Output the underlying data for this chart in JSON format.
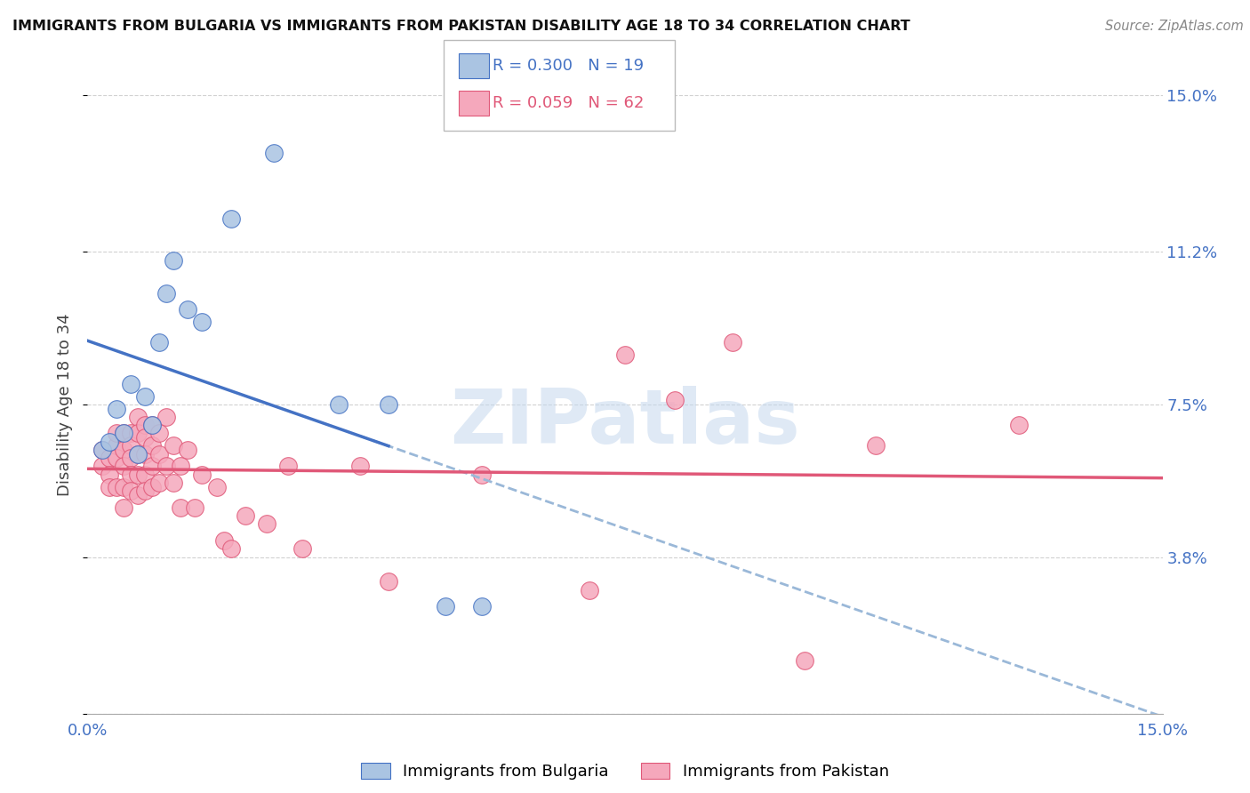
{
  "title": "IMMIGRANTS FROM BULGARIA VS IMMIGRANTS FROM PAKISTAN DISABILITY AGE 18 TO 34 CORRELATION CHART",
  "source": "Source: ZipAtlas.com",
  "ylabel": "Disability Age 18 to 34",
  "xmin": 0.0,
  "xmax": 0.15,
  "ymin": 0.0,
  "ymax": 0.15,
  "yticks": [
    0.0,
    0.038,
    0.075,
    0.112,
    0.15
  ],
  "ytick_labels": [
    "",
    "3.8%",
    "7.5%",
    "11.2%",
    "15.0%"
  ],
  "xtick_positions": [
    0.0,
    0.025,
    0.05,
    0.075,
    0.1,
    0.125,
    0.15
  ],
  "xtick_labels": [
    "0.0%",
    "",
    "",
    "",
    "",
    "",
    "15.0%"
  ],
  "bulgaria_R": 0.3,
  "bulgaria_N": 19,
  "pakistan_R": 0.059,
  "pakistan_N": 62,
  "bulgaria_color": "#aac4e2",
  "pakistan_color": "#f5a8bc",
  "bulgaria_line_color": "#4472c4",
  "pakistan_line_color": "#e05878",
  "dashed_line_color": "#9ab8d8",
  "bulgaria_points_x": [
    0.002,
    0.003,
    0.004,
    0.005,
    0.006,
    0.007,
    0.008,
    0.009,
    0.01,
    0.011,
    0.012,
    0.014,
    0.016,
    0.02,
    0.026,
    0.035,
    0.042,
    0.05,
    0.055
  ],
  "bulgaria_points_y": [
    0.064,
    0.066,
    0.074,
    0.068,
    0.08,
    0.063,
    0.077,
    0.07,
    0.09,
    0.102,
    0.11,
    0.098,
    0.095,
    0.12,
    0.136,
    0.075,
    0.075,
    0.026,
    0.026
  ],
  "pakistan_points_x": [
    0.002,
    0.002,
    0.003,
    0.003,
    0.003,
    0.004,
    0.004,
    0.004,
    0.004,
    0.005,
    0.005,
    0.005,
    0.005,
    0.005,
    0.006,
    0.006,
    0.006,
    0.006,
    0.006,
    0.007,
    0.007,
    0.007,
    0.007,
    0.007,
    0.008,
    0.008,
    0.008,
    0.008,
    0.008,
    0.009,
    0.009,
    0.009,
    0.009,
    0.01,
    0.01,
    0.01,
    0.011,
    0.011,
    0.012,
    0.012,
    0.013,
    0.013,
    0.014,
    0.015,
    0.016,
    0.018,
    0.019,
    0.02,
    0.022,
    0.025,
    0.028,
    0.03,
    0.038,
    0.042,
    0.055,
    0.07,
    0.075,
    0.082,
    0.09,
    0.1,
    0.11,
    0.13
  ],
  "pakistan_points_y": [
    0.064,
    0.06,
    0.062,
    0.058,
    0.055,
    0.065,
    0.068,
    0.062,
    0.055,
    0.068,
    0.064,
    0.06,
    0.055,
    0.05,
    0.068,
    0.065,
    0.062,
    0.058,
    0.054,
    0.072,
    0.068,
    0.063,
    0.058,
    0.053,
    0.07,
    0.067,
    0.063,
    0.058,
    0.054,
    0.07,
    0.065,
    0.06,
    0.055,
    0.068,
    0.063,
    0.056,
    0.072,
    0.06,
    0.065,
    0.056,
    0.06,
    0.05,
    0.064,
    0.05,
    0.058,
    0.055,
    0.042,
    0.04,
    0.048,
    0.046,
    0.06,
    0.04,
    0.06,
    0.032,
    0.058,
    0.03,
    0.087,
    0.076,
    0.09,
    0.013,
    0.065,
    0.07
  ],
  "watermark_text": "ZIPatlas",
  "watermark_color": "#c5d8ee",
  "background_color": "#ffffff",
  "grid_color": "#cccccc"
}
